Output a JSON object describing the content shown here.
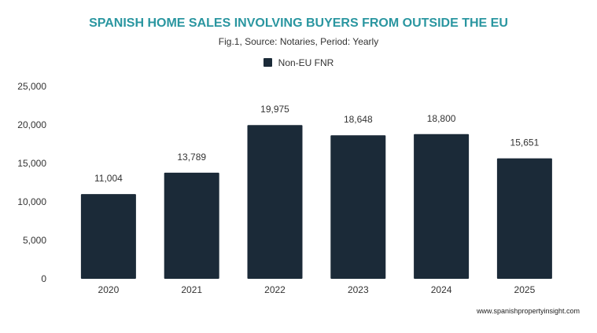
{
  "chart_data": {
    "type": "bar",
    "title": "SPANISH HOME SALES INVOLVING BUYERS FROM OUTSIDE THE EU",
    "subtitle": "Fig.1, Source: Notaries, Period: Yearly",
    "categories": [
      "2020",
      "2021",
      "2022",
      "2023",
      "2024",
      "2025"
    ],
    "series": [
      {
        "name": "Non-EU FNR",
        "values": [
          11004,
          13789,
          19975,
          18648,
          18800,
          15651
        ],
        "color": "#1b2a38"
      }
    ],
    "data_labels": [
      "11,004",
      "13,789",
      "19,975",
      "18,648",
      "18,800",
      "15,651"
    ],
    "yticks": [
      "0",
      "5,000",
      "10,000",
      "15,000",
      "20,000",
      "25,000"
    ],
    "ylim": [
      0,
      25000
    ],
    "grid": false,
    "legend_position": "top",
    "title_color": "#2a96a0"
  },
  "credit": "www.spanishpropertyinsight.com"
}
